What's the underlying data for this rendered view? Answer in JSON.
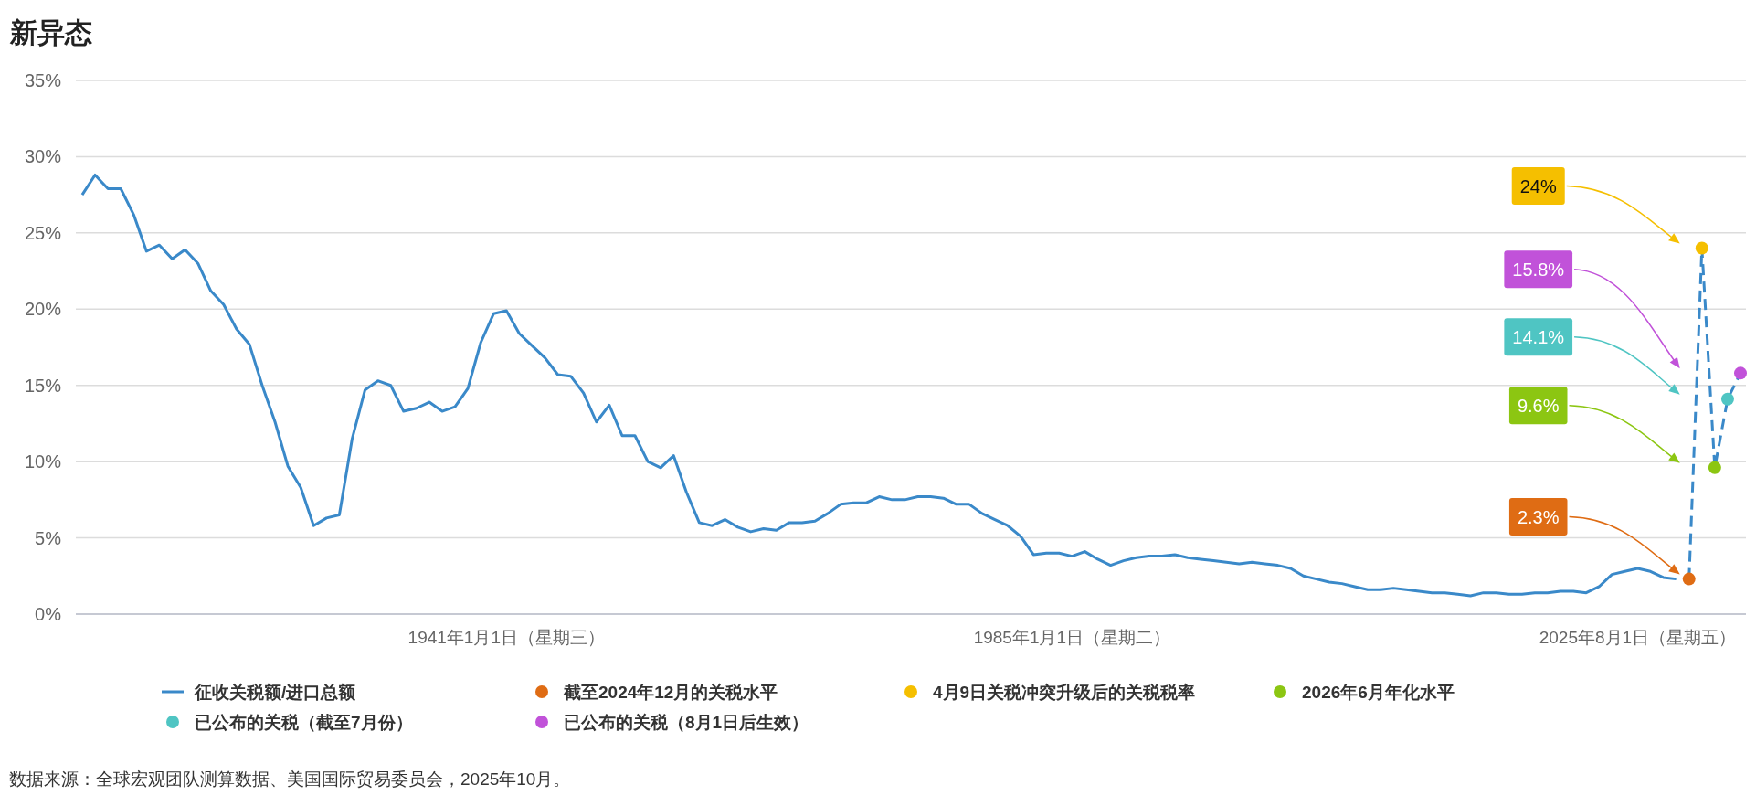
{
  "chart_data": {
    "type": "line",
    "title": "新异态",
    "categories": [
      null,
      null,
      null,
      null,
      null,
      null,
      null,
      null,
      null,
      null,
      null,
      null,
      null,
      null,
      null,
      null,
      null,
      null,
      null,
      null,
      null,
      null,
      null,
      null,
      null,
      null,
      null,
      null,
      null,
      null,
      null,
      null,
      null,
      "1941年1月1日（星期三）",
      null,
      null,
      null,
      null,
      null,
      null,
      null,
      null,
      null,
      null,
      null,
      null,
      null,
      null,
      null,
      null,
      null,
      null,
      null,
      null,
      null,
      null,
      null,
      null,
      null,
      null,
      null,
      null,
      null,
      null,
      null,
      null,
      null,
      null,
      null,
      null,
      null,
      null,
      null,
      null,
      null,
      null,
      null,
      "1985年1月1日（星期二）",
      null,
      null,
      null,
      null,
      null,
      null,
      null,
      null,
      null,
      null,
      null,
      null,
      null,
      null,
      null,
      null,
      null,
      null,
      null,
      null,
      null,
      null,
      null,
      null,
      null,
      null,
      null,
      null,
      null,
      null,
      null,
      null,
      null,
      null,
      null,
      null,
      null,
      null,
      null,
      null,
      null,
      null,
      null,
      "2025年8月1日（星期五）",
      null,
      null,
      null,
      null,
      null,
      null,
      null,
      null
    ],
    "series": [
      {
        "name": "征收关税额/进口总额",
        "color": "#3a89c9",
        "values": [
          27.5,
          28.8,
          27.9,
          27.9,
          26.2,
          23.8,
          24.2,
          23.3,
          23.9,
          23.0,
          21.2,
          20.3,
          18.7,
          17.7,
          15.0,
          12.6,
          9.7,
          8.3,
          5.8,
          6.3,
          6.5,
          11.5,
          14.7,
          15.3,
          15.0,
          13.3,
          13.5,
          13.9,
          13.3,
          13.6,
          14.8,
          17.8,
          19.7,
          19.9,
          18.4,
          17.6,
          16.8,
          15.7,
          15.6,
          14.5,
          12.6,
          13.7,
          11.7,
          11.7,
          10.0,
          9.6,
          10.4,
          8.0,
          6.0,
          5.8,
          6.2,
          5.7,
          5.4,
          5.6,
          5.5,
          6.0,
          6.0,
          6.1,
          6.6,
          7.2,
          7.3,
          7.3,
          7.7,
          7.5,
          7.5,
          7.7,
          7.7,
          7.6,
          7.2,
          7.2,
          6.6,
          6.2,
          5.8,
          5.1,
          3.9,
          4.0,
          4.0,
          3.8,
          4.1,
          3.6,
          3.2,
          3.5,
          3.7,
          3.8,
          3.8,
          3.9,
          3.7,
          3.6,
          3.5,
          3.4,
          3.3,
          3.4,
          3.3,
          3.2,
          3.0,
          2.5,
          2.3,
          2.1,
          2.0,
          1.8,
          1.6,
          1.6,
          1.7,
          1.6,
          1.5,
          1.4,
          1.4,
          1.3,
          1.2,
          1.4,
          1.4,
          1.3,
          1.3,
          1.4,
          1.4,
          1.5,
          1.5,
          1.4,
          1.8,
          2.6,
          2.8,
          3.0,
          2.8,
          2.4,
          2.3,
          null,
          null,
          null,
          null,
          null
        ]
      },
      {
        "color": "#3a89c9",
        "line_style": "dashed",
        "values": [
          null,
          null,
          null,
          null,
          null,
          null,
          null,
          null,
          null,
          null,
          null,
          null,
          null,
          null,
          null,
          null,
          null,
          null,
          null,
          null,
          null,
          null,
          null,
          null,
          null,
          null,
          null,
          null,
          null,
          null,
          null,
          null,
          null,
          null,
          null,
          null,
          null,
          null,
          null,
          null,
          null,
          null,
          null,
          null,
          null,
          null,
          null,
          null,
          null,
          null,
          null,
          null,
          null,
          null,
          null,
          null,
          null,
          null,
          null,
          null,
          null,
          null,
          null,
          null,
          null,
          null,
          null,
          null,
          null,
          null,
          null,
          null,
          null,
          null,
          null,
          null,
          null,
          null,
          null,
          null,
          null,
          null,
          null,
          null,
          null,
          null,
          null,
          null,
          null,
          null,
          null,
          null,
          null,
          null,
          null,
          null,
          null,
          null,
          null,
          null,
          null,
          null,
          null,
          null,
          null,
          null,
          null,
          null,
          null,
          null,
          null,
          null,
          null,
          null,
          null,
          null,
          null,
          null,
          null,
          null,
          null,
          null,
          null,
          null,
          null,
          2.3,
          24,
          9.6,
          14.1,
          15.8
        ]
      },
      {
        "name": "截至2024年12月的关税水平",
        "type": "scatter",
        "marker": "circle",
        "color": "#df6c14",
        "values": [
          null,
          null,
          null,
          null,
          null,
          null,
          null,
          null,
          null,
          null,
          null,
          null,
          null,
          null,
          null,
          null,
          null,
          null,
          null,
          null,
          null,
          null,
          null,
          null,
          null,
          null,
          null,
          null,
          null,
          null,
          null,
          null,
          null,
          null,
          null,
          null,
          null,
          null,
          null,
          null,
          null,
          null,
          null,
          null,
          null,
          null,
          null,
          null,
          null,
          null,
          null,
          null,
          null,
          null,
          null,
          null,
          null,
          null,
          null,
          null,
          null,
          null,
          null,
          null,
          null,
          null,
          null,
          null,
          null,
          null,
          null,
          null,
          null,
          null,
          null,
          null,
          null,
          null,
          null,
          null,
          null,
          null,
          null,
          null,
          null,
          null,
          null,
          null,
          null,
          null,
          null,
          null,
          null,
          null,
          null,
          null,
          null,
          null,
          null,
          null,
          null,
          null,
          null,
          null,
          null,
          null,
          null,
          null,
          null,
          null,
          null,
          null,
          null,
          null,
          null,
          null,
          null,
          null,
          null,
          null,
          null,
          null,
          null,
          null,
          null,
          2.3,
          null,
          null,
          null,
          null
        ]
      },
      {
        "name": "4月9日关税冲突升级后的关税税率",
        "type": "scatter",
        "marker": "circle",
        "color": "#f5bf00",
        "values": [
          null,
          null,
          null,
          null,
          null,
          null,
          null,
          null,
          null,
          null,
          null,
          null,
          null,
          null,
          null,
          null,
          null,
          null,
          null,
          null,
          null,
          null,
          null,
          null,
          null,
          null,
          null,
          null,
          null,
          null,
          null,
          null,
          null,
          null,
          null,
          null,
          null,
          null,
          null,
          null,
          null,
          null,
          null,
          null,
          null,
          null,
          null,
          null,
          null,
          null,
          null,
          null,
          null,
          null,
          null,
          null,
          null,
          null,
          null,
          null,
          null,
          null,
          null,
          null,
          null,
          null,
          null,
          null,
          null,
          null,
          null,
          null,
          null,
          null,
          null,
          null,
          null,
          null,
          null,
          null,
          null,
          null,
          null,
          null,
          null,
          null,
          null,
          null,
          null,
          null,
          null,
          null,
          null,
          null,
          null,
          null,
          null,
          null,
          null,
          null,
          null,
          null,
          null,
          null,
          null,
          null,
          null,
          null,
          null,
          null,
          null,
          null,
          null,
          null,
          null,
          null,
          null,
          null,
          null,
          null,
          null,
          null,
          null,
          null,
          null,
          null,
          24,
          null,
          null,
          null
        ]
      },
      {
        "name": "2026年6月年化水平",
        "type": "scatter",
        "marker": "circle",
        "color": "#8cc612",
        "values": [
          null,
          null,
          null,
          null,
          null,
          null,
          null,
          null,
          null,
          null,
          null,
          null,
          null,
          null,
          null,
          null,
          null,
          null,
          null,
          null,
          null,
          null,
          null,
          null,
          null,
          null,
          null,
          null,
          null,
          null,
          null,
          null,
          null,
          null,
          null,
          null,
          null,
          null,
          null,
          null,
          null,
          null,
          null,
          null,
          null,
          null,
          null,
          null,
          null,
          null,
          null,
          null,
          null,
          null,
          null,
          null,
          null,
          null,
          null,
          null,
          null,
          null,
          null,
          null,
          null,
          null,
          null,
          null,
          null,
          null,
          null,
          null,
          null,
          null,
          null,
          null,
          null,
          null,
          null,
          null,
          null,
          null,
          null,
          null,
          null,
          null,
          null,
          null,
          null,
          null,
          null,
          null,
          null,
          null,
          null,
          null,
          null,
          null,
          null,
          null,
          null,
          null,
          null,
          null,
          null,
          null,
          null,
          null,
          null,
          null,
          null,
          null,
          null,
          null,
          null,
          null,
          null,
          null,
          null,
          null,
          null,
          null,
          null,
          null,
          null,
          null,
          null,
          9.6,
          null,
          null
        ]
      },
      {
        "name": "已公布的关税（截至7月份）",
        "type": "scatter",
        "marker": "circle",
        "color": "#4fc5c3",
        "values": [
          null,
          null,
          null,
          null,
          null,
          null,
          null,
          null,
          null,
          null,
          null,
          null,
          null,
          null,
          null,
          null,
          null,
          null,
          null,
          null,
          null,
          null,
          null,
          null,
          null,
          null,
          null,
          null,
          null,
          null,
          null,
          null,
          null,
          null,
          null,
          null,
          null,
          null,
          null,
          null,
          null,
          null,
          null,
          null,
          null,
          null,
          null,
          null,
          null,
          null,
          null,
          null,
          null,
          null,
          null,
          null,
          null,
          null,
          null,
          null,
          null,
          null,
          null,
          null,
          null,
          null,
          null,
          null,
          null,
          null,
          null,
          null,
          null,
          null,
          null,
          null,
          null,
          null,
          null,
          null,
          null,
          null,
          null,
          null,
          null,
          null,
          null,
          null,
          null,
          null,
          null,
          null,
          null,
          null,
          null,
          null,
          null,
          null,
          null,
          null,
          null,
          null,
          null,
          null,
          null,
          null,
          null,
          null,
          null,
          null,
          null,
          null,
          null,
          null,
          null,
          null,
          null,
          null,
          null,
          null,
          null,
          null,
          null,
          null,
          null,
          null,
          null,
          null,
          14.1,
          null
        ]
      },
      {
        "name": "已公布的关税（8月1日后生效）",
        "type": "scatter",
        "marker": "circle",
        "color": "#c152d9",
        "values": [
          null,
          null,
          null,
          null,
          null,
          null,
          null,
          null,
          null,
          null,
          null,
          null,
          null,
          null,
          null,
          null,
          null,
          null,
          null,
          null,
          null,
          null,
          null,
          null,
          null,
          null,
          null,
          null,
          null,
          null,
          null,
          null,
          null,
          null,
          null,
          null,
          null,
          null,
          null,
          null,
          null,
          null,
          null,
          null,
          null,
          null,
          null,
          null,
          null,
          null,
          null,
          null,
          null,
          null,
          null,
          null,
          null,
          null,
          null,
          null,
          null,
          null,
          null,
          null,
          null,
          null,
          null,
          null,
          null,
          null,
          null,
          null,
          null,
          null,
          null,
          null,
          null,
          null,
          null,
          null,
          null,
          null,
          null,
          null,
          null,
          null,
          null,
          null,
          null,
          null,
          null,
          null,
          null,
          null,
          null,
          null,
          null,
          null,
          null,
          null,
          null,
          null,
          null,
          null,
          null,
          null,
          null,
          null,
          null,
          null,
          null,
          null,
          null,
          null,
          null,
          null,
          null,
          null,
          null,
          null,
          null,
          null,
          null,
          null,
          null,
          null,
          null,
          null,
          null,
          15.8
        ]
      }
    ],
    "ylim": [
      0,
      35
    ],
    "yticks": [
      {
        "value": 0,
        "label": "0%"
      },
      {
        "value": 5,
        "label": "5%"
      },
      {
        "value": 10,
        "label": "10%"
      },
      {
        "value": 15,
        "label": "15%"
      },
      {
        "value": 20,
        "label": "20%"
      },
      {
        "value": 25,
        "label": "25%"
      },
      {
        "value": 30,
        "label": "30%"
      },
      {
        "value": 35,
        "label": "35%"
      }
    ],
    "grid": "y",
    "legend": "bottom",
    "line_style": "solid",
    "annotations": [
      "2.3%",
      "24%",
      "9.6%",
      "14.1%",
      "15.8%",
      "数据来源：全球宏观团队测算数据、美国国际贸易委员会，2025年10月。"
    ]
  }
}
